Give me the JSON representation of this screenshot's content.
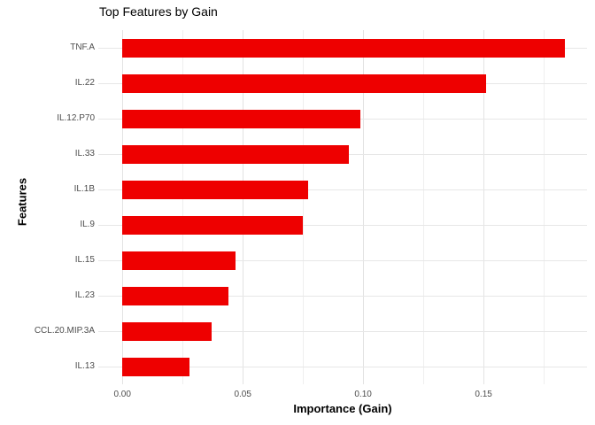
{
  "chart_data": {
    "type": "bar",
    "orientation": "horizontal",
    "title": "Top Features by Gain",
    "xlabel": "Importance (Gain)",
    "ylabel": "Features",
    "categories": [
      "TNF.A",
      "IL.22",
      "IL.12.P70",
      "IL.33",
      "IL.1B",
      "IL.9",
      "IL.15",
      "IL.23",
      "CCL.20.MIP.3A",
      "IL.13"
    ],
    "values": [
      0.184,
      0.151,
      0.099,
      0.094,
      0.077,
      0.075,
      0.047,
      0.044,
      0.037,
      0.028
    ],
    "x_ticks": [
      "0.00",
      "0.05",
      "0.10",
      "0.15"
    ],
    "xlim": [
      -0.01,
      0.193
    ],
    "bar_color": "#ee0000",
    "grid": true,
    "legend": "none"
  }
}
